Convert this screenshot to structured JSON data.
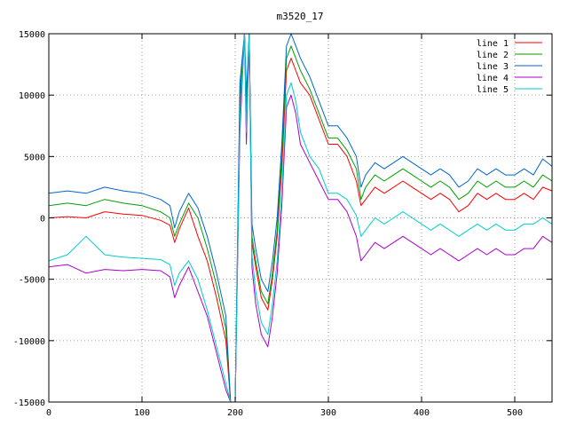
{
  "chart_data": {
    "type": "line",
    "title": "m3520_17",
    "xlabel": "",
    "ylabel": "",
    "xlim": [
      0,
      540
    ],
    "ylim": [
      -15000,
      15000
    ],
    "xticks": [
      0,
      100,
      200,
      300,
      400,
      500
    ],
    "yticks": [
      -15000,
      -10000,
      -5000,
      0,
      5000,
      10000,
      15000
    ],
    "grid": true,
    "legend_position": "top-right",
    "x": [
      0,
      20,
      40,
      60,
      80,
      100,
      120,
      130,
      135,
      140,
      150,
      160,
      170,
      180,
      190,
      195,
      200,
      205,
      210,
      212,
      215,
      218,
      222,
      228,
      235,
      240,
      245,
      250,
      255,
      260,
      265,
      270,
      280,
      290,
      300,
      310,
      320,
      330,
      335,
      340,
      350,
      360,
      370,
      380,
      390,
      400,
      410,
      420,
      430,
      440,
      450,
      460,
      470,
      480,
      490,
      500,
      510,
      520,
      530,
      540
    ],
    "series": [
      {
        "name": "line 1",
        "color": "#ff0000",
        "values": [
          0,
          100,
          0,
          500,
          300,
          200,
          -200,
          -600,
          -2000,
          -900,
          800,
          -1500,
          -3500,
          -6500,
          -10000,
          -15000,
          -15000,
          9000,
          15000,
          8000,
          15000,
          -2000,
          -4000,
          -6500,
          -7500,
          -5000,
          -1500,
          4000,
          12000,
          13000,
          12000,
          11000,
          10000,
          8000,
          6000,
          6000,
          5000,
          3000,
          1000,
          1500,
          2500,
          2000,
          2500,
          3000,
          2500,
          2000,
          1500,
          2000,
          1500,
          500,
          1000,
          2000,
          1500,
          2000,
          1500,
          1500,
          2000,
          1500,
          2500,
          2200
        ]
      },
      {
        "name": "line 2",
        "color": "#00a000",
        "values": [
          1000,
          1200,
          1000,
          1500,
          1200,
          1000,
          500,
          0,
          -1500,
          -500,
          1200,
          0,
          -2500,
          -5500,
          -9000,
          -15000,
          -15000,
          10000,
          15000,
          9000,
          15000,
          -1500,
          -3500,
          -6000,
          -7000,
          -4500,
          -1000,
          5000,
          13000,
          14000,
          13000,
          12000,
          10500,
          8500,
          6500,
          6500,
          5500,
          4000,
          1500,
          2500,
          3500,
          3000,
          3500,
          4000,
          3500,
          3000,
          2500,
          3000,
          2500,
          1500,
          2000,
          3000,
          2500,
          3000,
          2500,
          2500,
          3000,
          2500,
          3500,
          3000
        ]
      },
      {
        "name": "line 3",
        "color": "#0066cc",
        "values": [
          2000,
          2200,
          2000,
          2500,
          2200,
          2000,
          1500,
          1000,
          -800,
          500,
          2000,
          800,
          -1500,
          -4500,
          -8000,
          -15000,
          -15000,
          11000,
          15000,
          10000,
          15000,
          -500,
          -2500,
          -5000,
          -6000,
          -3500,
          0,
          6000,
          14000,
          15000,
          14000,
          13000,
          11500,
          9500,
          7500,
          7500,
          6500,
          5000,
          2500,
          3500,
          4500,
          4000,
          4500,
          5000,
          4500,
          4000,
          3500,
          4000,
          3500,
          2500,
          3000,
          4000,
          3500,
          4000,
          3500,
          3500,
          4000,
          3500,
          4800,
          4200
        ]
      },
      {
        "name": "line 4",
        "color": "#aa00cc",
        "values": [
          -4000,
          -3800,
          -4500,
          -4200,
          -4300,
          -4200,
          -4300,
          -4800,
          -6500,
          -5500,
          -4000,
          -6000,
          -8000,
          -11000,
          -14000,
          -15000,
          -15000,
          7000,
          15000,
          6000,
          15000,
          -4000,
          -7000,
          -9500,
          -10500,
          -8000,
          -4500,
          1000,
          9000,
          10000,
          8500,
          6000,
          4500,
          3000,
          1500,
          1500,
          500,
          -1500,
          -3500,
          -3000,
          -2000,
          -2500,
          -2000,
          -1500,
          -2000,
          -2500,
          -3000,
          -2500,
          -3000,
          -3500,
          -3000,
          -2500,
          -3000,
          -2500,
          -3000,
          -3000,
          -2500,
          -2500,
          -1500,
          -2000
        ]
      },
      {
        "name": "line 5",
        "color": "#00cccc",
        "values": [
          -3500,
          -3000,
          -1500,
          -3000,
          -3200,
          -3300,
          -3400,
          -3800,
          -5500,
          -4500,
          -3500,
          -5000,
          -7500,
          -10500,
          -13500,
          -15000,
          -15000,
          8000,
          15000,
          7000,
          15000,
          -3000,
          -6000,
          -8500,
          -9500,
          -7000,
          -3500,
          2000,
          10000,
          11000,
          9500,
          7000,
          5000,
          4000,
          2000,
          2000,
          1500,
          200,
          -1500,
          -1000,
          0,
          -500,
          0,
          500,
          0,
          -500,
          -1000,
          -500,
          -1000,
          -1500,
          -1000,
          -500,
          -1000,
          -500,
          -1000,
          -1000,
          -500,
          -500,
          0,
          -500
        ]
      }
    ]
  }
}
